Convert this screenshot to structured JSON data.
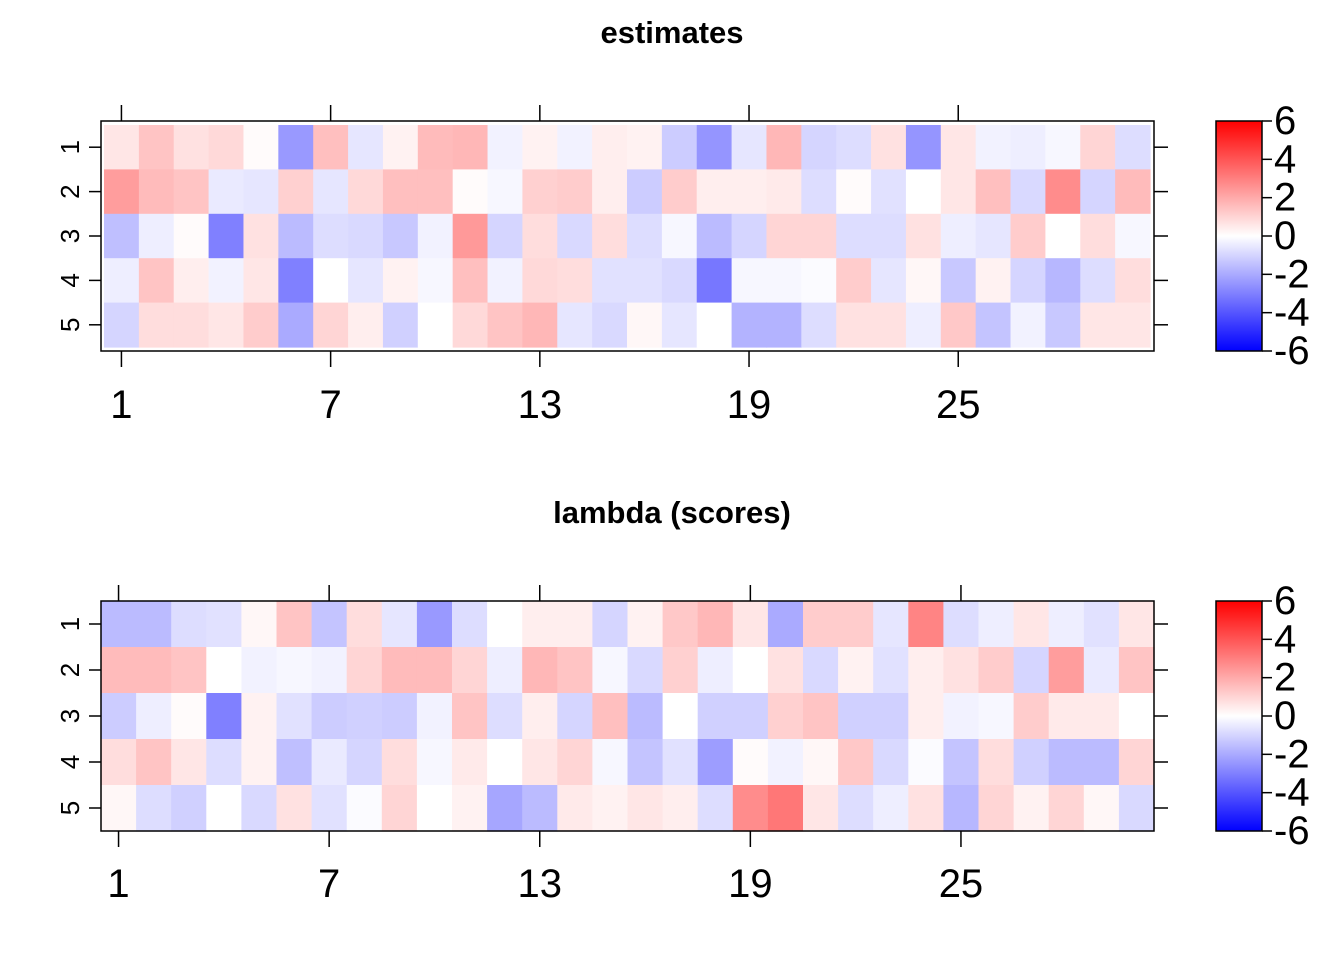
{
  "chart_data": [
    {
      "type": "heatmap",
      "title": "estimates",
      "x_ticks": [
        "1",
        "7",
        "13",
        "19",
        "25"
      ],
      "y_ticks": [
        "1",
        "2",
        "3",
        "4",
        "5"
      ],
      "color_scale": {
        "min": -6,
        "max": 6,
        "low_color": "#0000ff",
        "mid_color": "#ffffff",
        "high_color": "#ff0000"
      },
      "colorbar_ticks": [
        "6",
        "4",
        "2",
        "0",
        "-2",
        "-4",
        "-6"
      ],
      "rows": [
        "1",
        "2",
        "3",
        "4",
        "5"
      ],
      "columns": 30,
      "values": [
        [
          0.6,
          1.4,
          0.7,
          0.9,
          0.1,
          -2.4,
          1.5,
          -0.6,
          0.3,
          1.6,
          1.7,
          -0.3,
          0.3,
          -0.3,
          0.4,
          0.3,
          -1.2,
          -2.5,
          -0.6,
          1.7,
          -1.0,
          -0.8,
          0.7,
          -2.5,
          0.6,
          -0.3,
          -0.4,
          -0.2,
          1.0,
          -0.8
        ],
        [
          2.3,
          1.6,
          1.4,
          -0.5,
          -0.6,
          1.1,
          -0.6,
          0.9,
          1.5,
          1.5,
          0.1,
          -0.2,
          1.1,
          1.2,
          0.4,
          -1.2,
          1.2,
          0.4,
          0.4,
          0.5,
          -0.8,
          0.1,
          -0.7,
          0.0,
          0.6,
          1.5,
          -0.9,
          2.7,
          -1.0,
          1.6
        ],
        [
          -1.5,
          -0.4,
          0.1,
          -3.0,
          0.7,
          -1.6,
          -0.8,
          -0.9,
          -1.3,
          -0.3,
          2.4,
          -1.0,
          0.8,
          -0.9,
          0.8,
          -0.8,
          -0.2,
          -1.6,
          -1.0,
          1.0,
          1.0,
          -0.8,
          -0.8,
          0.7,
          -0.4,
          -0.6,
          1.2,
          0.0,
          0.8,
          -0.2
        ],
        [
          -0.4,
          1.4,
          0.4,
          -0.3,
          0.6,
          -3.0,
          0.0,
          -0.6,
          0.3,
          -0.2,
          1.5,
          -0.3,
          0.9,
          0.8,
          -0.7,
          -0.7,
          -0.9,
          -3.2,
          -0.2,
          -0.2,
          -0.1,
          1.2,
          -0.6,
          0.2,
          -1.3,
          0.3,
          -1.0,
          -1.7,
          -0.8,
          0.8
        ],
        [
          -1.0,
          0.8,
          0.8,
          0.6,
          1.2,
          -2.0,
          1.0,
          0.4,
          -1.1,
          0.0,
          0.9,
          1.4,
          1.7,
          -0.6,
          -0.9,
          0.2,
          -0.6,
          0.0,
          -1.8,
          -1.8,
          -0.8,
          0.7,
          0.7,
          -0.4,
          1.3,
          -1.4,
          -0.3,
          -1.3,
          0.6,
          0.6
        ]
      ]
    },
    {
      "type": "heatmap",
      "title": "lambda (scores)",
      "x_ticks": [
        "1",
        "7",
        "13",
        "19",
        "25"
      ],
      "y_ticks": [
        "1",
        "2",
        "3",
        "4",
        "5"
      ],
      "color_scale": {
        "min": -6,
        "max": 6,
        "low_color": "#0000ff",
        "mid_color": "#ffffff",
        "high_color": "#ff0000"
      },
      "colorbar_ticks": [
        "6",
        "4",
        "2",
        "0",
        "-2",
        "-4",
        "-6"
      ],
      "rows": [
        "1",
        "2",
        "3",
        "4",
        "5"
      ],
      "columns": 30,
      "values": [
        [
          -1.6,
          -1.6,
          -0.8,
          -0.7,
          0.2,
          1.4,
          -1.4,
          0.8,
          -0.6,
          -2.4,
          -0.8,
          0.0,
          0.4,
          0.4,
          -1.0,
          0.3,
          1.3,
          1.7,
          0.6,
          -2.0,
          1.2,
          1.2,
          -0.6,
          2.9,
          -0.8,
          -0.4,
          0.6,
          -0.4,
          -0.7,
          0.6
        ],
        [
          1.6,
          1.6,
          1.4,
          0.0,
          -0.3,
          -0.2,
          -0.3,
          1.0,
          1.6,
          1.6,
          1.0,
          -0.4,
          1.7,
          1.4,
          -0.2,
          -0.9,
          1.1,
          -0.4,
          0.0,
          0.7,
          -0.9,
          0.3,
          -0.7,
          0.4,
          0.7,
          1.2,
          -1.0,
          2.3,
          -0.5,
          1.4
        ],
        [
          -1.2,
          -0.4,
          0.1,
          -3.0,
          0.3,
          -0.7,
          -1.2,
          -1.1,
          -1.2,
          -0.3,
          1.4,
          -0.8,
          0.4,
          -1.0,
          1.5,
          -1.6,
          0.0,
          -1.1,
          -1.1,
          1.1,
          1.4,
          -1.1,
          -1.1,
          0.4,
          -0.3,
          -0.2,
          1.2,
          0.5,
          0.5,
          0.0
        ],
        [
          0.8,
          1.4,
          0.6,
          -0.8,
          0.3,
          -1.5,
          -0.5,
          -1.0,
          0.8,
          -0.2,
          0.5,
          0.0,
          0.6,
          1.0,
          -0.2,
          -1.4,
          -0.7,
          -2.3,
          0.1,
          -0.3,
          0.2,
          1.3,
          -0.9,
          -0.1,
          -1.4,
          0.8,
          -1.1,
          -1.6,
          -1.6,
          1.0
        ],
        [
          0.2,
          -0.8,
          -1.1,
          0.0,
          -0.9,
          0.7,
          -0.7,
          -0.1,
          1.0,
          0.0,
          0.3,
          -2.1,
          -1.6,
          0.5,
          0.3,
          0.6,
          0.4,
          -0.8,
          2.7,
          3.2,
          0.6,
          -0.8,
          -0.4,
          0.7,
          -1.7,
          1.0,
          0.3,
          1.0,
          0.2,
          -0.9
        ]
      ]
    }
  ]
}
